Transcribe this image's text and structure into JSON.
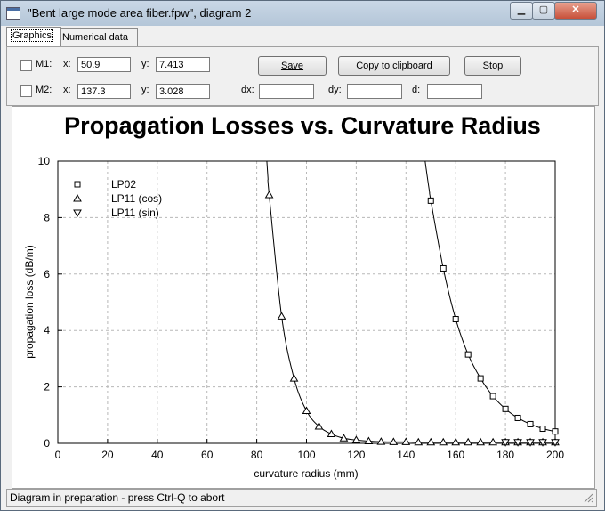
{
  "window": {
    "title": "\"Bent large mode area fiber.fpw\", diagram 2",
    "minimize": "▁",
    "maximize": "▢",
    "close": "✕"
  },
  "tabs": [
    {
      "label": "Graphics",
      "active": true
    },
    {
      "label": "Numerical data",
      "active": false
    }
  ],
  "markers": {
    "m1": {
      "label": "M1:",
      "x_label": "x:",
      "x_value": "50.9",
      "y_label": "y:",
      "y_value": "7.413"
    },
    "m2": {
      "label": "M2:",
      "x_label": "x:",
      "x_value": "137.3",
      "y_label": "y:",
      "y_value": "3.028"
    },
    "dx_label": "dx:",
    "dx_value": "",
    "dy_label": "dy:",
    "dy_value": "",
    "d_label": "d:",
    "d_value": ""
  },
  "buttons": {
    "save": "Save",
    "copy": "Copy to clipboard",
    "stop": "Stop"
  },
  "status": "Diagram in preparation - press Ctrl-Q to abort",
  "chart_data": {
    "type": "line",
    "title": "Propagation Losses vs. Curvature Radius",
    "xlabel": "curvature radius (mm)",
    "ylabel": "propagation loss (dB/m)",
    "xlim": [
      0,
      200
    ],
    "ylim": [
      0,
      10
    ],
    "xticks": [
      0,
      20,
      40,
      60,
      80,
      100,
      120,
      140,
      160,
      180,
      200
    ],
    "yticks": [
      0,
      2,
      4,
      6,
      8,
      10
    ],
    "grid": true,
    "legend_position": "top-left",
    "series": [
      {
        "name": "LP02",
        "marker": "square",
        "x": [
          150,
          155,
          160,
          165,
          170,
          175,
          180,
          185,
          190,
          195,
          200
        ],
        "y": [
          8.6,
          6.2,
          4.4,
          3.15,
          2.3,
          1.67,
          1.22,
          0.9,
          0.68,
          0.52,
          0.42
        ]
      },
      {
        "name": "LP11 (cos)",
        "marker": "triangle-up",
        "x": [
          85,
          90,
          95,
          100,
          105,
          110,
          115,
          120,
          125,
          130,
          135,
          140,
          145,
          150,
          155,
          160,
          165,
          170,
          175,
          180,
          185,
          190,
          195,
          200
        ],
        "y": [
          8.8,
          4.5,
          2.3,
          1.15,
          0.6,
          0.33,
          0.18,
          0.12,
          0.08,
          0.06,
          0.05,
          0.05,
          0.04,
          0.04,
          0.04,
          0.04,
          0.04,
          0.04,
          0.04,
          0.04,
          0.04,
          0.04,
          0.04,
          0.04
        ]
      },
      {
        "name": "LP11 (sin)",
        "marker": "triangle-down",
        "x": [
          180,
          185,
          190,
          195,
          200
        ],
        "y": [
          0.04,
          0.04,
          0.04,
          0.04,
          0.04
        ]
      }
    ]
  }
}
